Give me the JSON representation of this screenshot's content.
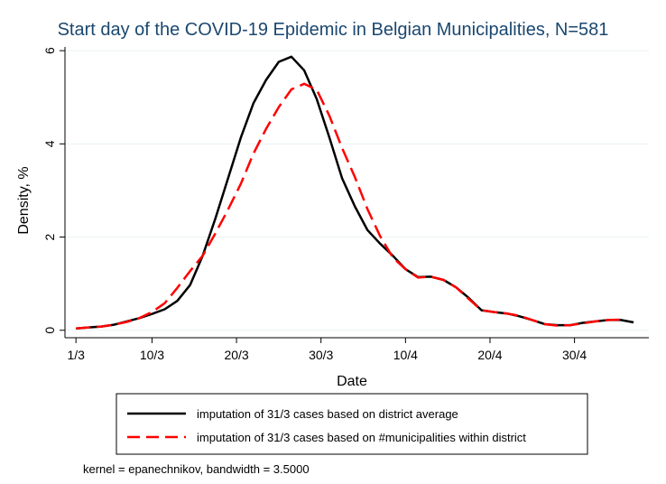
{
  "chart_data": {
    "type": "line",
    "title": "Start day of the COVID-19 Epidemic in Belgian Municipalities, N=581",
    "xlabel": "Date",
    "ylabel": "Density, %",
    "x_unit": "day",
    "x_ticks": [
      {
        "value": 1,
        "label": "1/3"
      },
      {
        "value": 10,
        "label": "10/3"
      },
      {
        "value": 20,
        "label": "20/3"
      },
      {
        "value": 30,
        "label": "30/3"
      },
      {
        "value": 40,
        "label": "10/4"
      },
      {
        "value": 50,
        "label": "20/4"
      },
      {
        "value": 60,
        "label": "30/4"
      }
    ],
    "y_ticks": [
      {
        "value": 0,
        "label": "0"
      },
      {
        "value": 2,
        "label": "2"
      },
      {
        "value": 4,
        "label": "4"
      },
      {
        "value": 6,
        "label": "6"
      }
    ],
    "xlim": [
      -0.3,
      68.8
    ],
    "ylim": [
      -0.16,
      6.08
    ],
    "grid": "horizontal",
    "legend_position": "bottom",
    "series": [
      {
        "name": "imputation of 31/3 cases based on district average",
        "color": "#000000",
        "dash": "solid",
        "x": [
          1,
          2.5,
          4,
          5.5,
          7,
          8.5,
          10,
          11.5,
          13,
          14.5,
          16,
          17.5,
          19,
          20.5,
          22,
          23.5,
          25,
          26.5,
          28,
          29.5,
          31,
          32.5,
          34,
          35.5,
          37,
          38.5,
          40,
          41.5,
          43,
          44.5,
          46,
          47.5,
          49,
          50.5,
          52,
          53.5,
          55,
          56.5,
          58,
          59.5,
          61,
          62.5,
          64,
          65.5,
          67
        ],
        "values": [
          0.04,
          0.06,
          0.08,
          0.12,
          0.19,
          0.26,
          0.35,
          0.45,
          0.63,
          0.97,
          1.6,
          2.4,
          3.26,
          4.13,
          4.87,
          5.37,
          5.76,
          5.87,
          5.58,
          4.96,
          4.13,
          3.26,
          2.66,
          2.15,
          1.86,
          1.6,
          1.31,
          1.14,
          1.15,
          1.08,
          0.92,
          0.69,
          0.43,
          0.39,
          0.36,
          0.3,
          0.22,
          0.13,
          0.11,
          0.11,
          0.16,
          0.19,
          0.22,
          0.22,
          0.17
        ]
      },
      {
        "name": "imputation of 31/3 cases based on #municipalities within district",
        "color": "#ff0000",
        "dash": "dashed",
        "x": [
          1,
          2.5,
          4,
          5.5,
          7,
          8.5,
          10,
          11.5,
          13,
          14.5,
          16,
          17.5,
          19,
          20.5,
          22,
          23.5,
          25,
          26.5,
          28,
          29.5,
          31,
          32.5,
          34,
          35.5,
          37,
          38.5,
          40,
          41.5,
          43,
          44.5,
          46,
          47.5,
          49,
          50.5,
          52,
          53.5,
          55,
          56.5,
          58,
          59.5,
          61,
          62.5,
          64,
          65.5
        ],
        "values": [
          0.04,
          0.06,
          0.08,
          0.12,
          0.18,
          0.26,
          0.39,
          0.58,
          0.91,
          1.27,
          1.6,
          2.08,
          2.59,
          3.14,
          3.79,
          4.32,
          4.79,
          5.17,
          5.29,
          5.16,
          4.6,
          3.91,
          3.29,
          2.6,
          2.02,
          1.56,
          1.31,
          1.13,
          1.15,
          1.08,
          0.92,
          0.67,
          0.43,
          0.39,
          0.36,
          0.31,
          0.22,
          0.13,
          0.1,
          0.11,
          0.15,
          0.19,
          0.22,
          0.23
        ]
      }
    ],
    "note": "kernel = epanechnikov, bandwidth = 3.5000"
  }
}
